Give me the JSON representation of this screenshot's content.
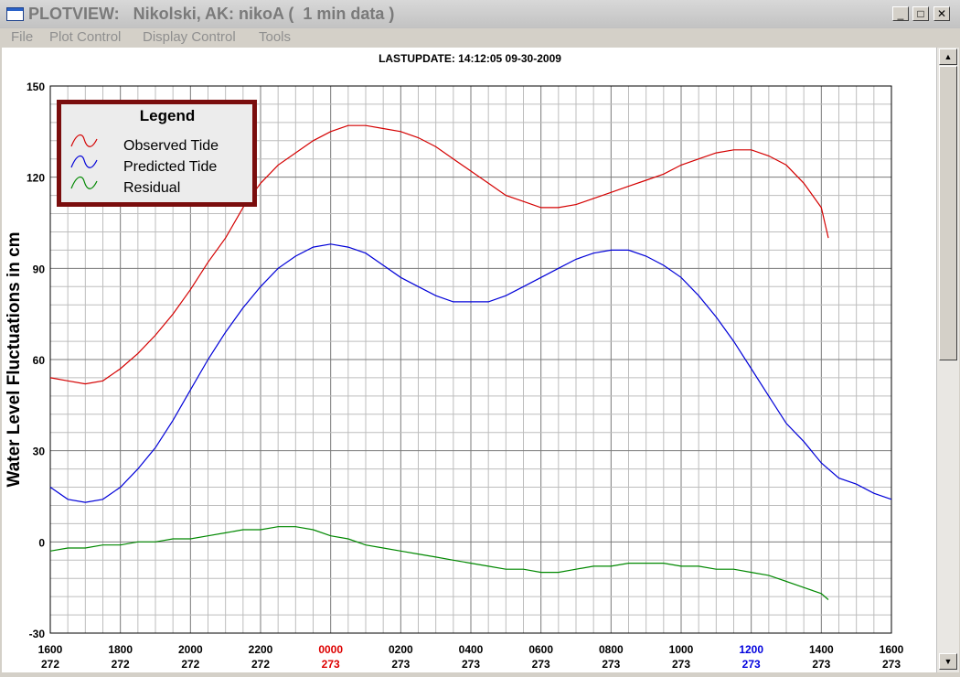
{
  "window": {
    "title": "PLOTVIEW:   Nikolski, AK: nikoA (  1 min data )",
    "controls": {
      "minimize": "_",
      "maximize": "□",
      "close": "✕"
    }
  },
  "menu": [
    "File",
    "Plot Control",
    "Display Control",
    "Tools"
  ],
  "plot": {
    "last_update": "LASTUPDATE: 14:12:05  09-30-2009",
    "legend": {
      "title": "Legend",
      "items": [
        {
          "label": "Observed Tide",
          "color": "#d40000"
        },
        {
          "label": "Predicted Tide",
          "color": "#0000d8"
        },
        {
          "label": "Residual",
          "color": "#008800"
        }
      ]
    }
  },
  "scrollbar": {
    "up_icon": "up-arrow-icon",
    "down_icon": "down-arrow-icon"
  },
  "chart_data": {
    "type": "line",
    "ylabel": "Water Level Fluctuations in cm",
    "ylim": [
      -30,
      150
    ],
    "yticks": [
      150,
      120,
      90,
      60,
      30,
      0,
      -30
    ],
    "xlim_hours": [
      0,
      24
    ],
    "xticks": [
      {
        "time": "1600",
        "day": "272",
        "color": "#000000"
      },
      {
        "time": "1800",
        "day": "272",
        "color": "#000000"
      },
      {
        "time": "2000",
        "day": "272",
        "color": "#000000"
      },
      {
        "time": "2200",
        "day": "272",
        "color": "#000000"
      },
      {
        "time": "0000",
        "day": "273",
        "color": "#dd0000"
      },
      {
        "time": "0200",
        "day": "273",
        "color": "#000000"
      },
      {
        "time": "0400",
        "day": "273",
        "color": "#000000"
      },
      {
        "time": "0600",
        "day": "273",
        "color": "#000000"
      },
      {
        "time": "0800",
        "day": "273",
        "color": "#000000"
      },
      {
        "time": "1000",
        "day": "273",
        "color": "#000000"
      },
      {
        "time": "1200",
        "day": "273",
        "color": "#0000dd"
      },
      {
        "time": "1400",
        "day": "273",
        "color": "#000000"
      },
      {
        "time": "1600",
        "day": "273",
        "color": "#000000"
      }
    ],
    "grid": true,
    "legend_position": "top-left",
    "series": [
      {
        "name": "Observed Tide",
        "color": "#d40000",
        "x": [
          0,
          0.5,
          1.0,
          1.5,
          2.0,
          2.5,
          3.0,
          3.5,
          4.0,
          4.5,
          5.0,
          5.5,
          6.0,
          6.5,
          7.0,
          7.5,
          8.0,
          8.5,
          9.0,
          9.5,
          10.0,
          10.5,
          11.0,
          11.5,
          12.0,
          12.5,
          13.0,
          13.5,
          14.0,
          14.5,
          15.0,
          15.5,
          16.0,
          16.5,
          17.0,
          17.5,
          18.0,
          18.5,
          19.0,
          19.5,
          20.0,
          20.5,
          21.0,
          21.5,
          22.0,
          22.2
        ],
        "y": [
          54,
          53,
          52,
          53,
          57,
          62,
          68,
          75,
          83,
          92,
          100,
          110,
          118,
          124,
          128,
          132,
          135,
          137,
          137,
          136,
          135,
          133,
          130,
          126,
          122,
          118,
          114,
          112,
          110,
          110,
          111,
          113,
          115,
          117,
          119,
          121,
          124,
          126,
          128,
          129,
          129,
          127,
          124,
          118,
          110,
          100
        ]
      },
      {
        "name": "Predicted Tide",
        "color": "#0000d8",
        "x": [
          0,
          0.5,
          1.0,
          1.5,
          2.0,
          2.5,
          3.0,
          3.5,
          4.0,
          4.5,
          5.0,
          5.5,
          6.0,
          6.5,
          7.0,
          7.5,
          8.0,
          8.5,
          9.0,
          9.5,
          10.0,
          10.5,
          11.0,
          11.5,
          12.0,
          12.5,
          13.0,
          13.5,
          14.0,
          14.5,
          15.0,
          15.5,
          16.0,
          16.5,
          17.0,
          17.5,
          18.0,
          18.5,
          19.0,
          19.5,
          20.0,
          20.5,
          21.0,
          21.5,
          22.0,
          22.5,
          23.0,
          23.5,
          24.0
        ],
        "y": [
          18,
          14,
          13,
          14,
          18,
          24,
          31,
          40,
          50,
          60,
          69,
          77,
          84,
          90,
          94,
          97,
          98,
          97,
          95,
          91,
          87,
          84,
          81,
          79,
          79,
          79,
          81,
          84,
          87,
          90,
          93,
          95,
          96,
          96,
          94,
          91,
          87,
          81,
          74,
          66,
          57,
          48,
          39,
          33,
          26,
          21,
          19,
          16,
          14
        ]
      },
      {
        "name": "Residual",
        "color": "#008800",
        "x": [
          0,
          0.5,
          1.0,
          1.5,
          2.0,
          2.5,
          3.0,
          3.5,
          4.0,
          4.5,
          5.0,
          5.5,
          6.0,
          6.5,
          7.0,
          7.5,
          8.0,
          8.5,
          9.0,
          9.5,
          10.0,
          10.5,
          11.0,
          11.5,
          12.0,
          12.5,
          13.0,
          13.5,
          14.0,
          14.5,
          15.0,
          15.5,
          16.0,
          16.5,
          17.0,
          17.5,
          18.0,
          18.5,
          19.0,
          19.5,
          20.0,
          20.5,
          21.0,
          21.5,
          22.0,
          22.2
        ],
        "y": [
          -3,
          -2,
          -2,
          -1,
          -1,
          0,
          0,
          1,
          1,
          2,
          3,
          4,
          4,
          5,
          5,
          4,
          2,
          1,
          -1,
          -2,
          -3,
          -4,
          -5,
          -6,
          -7,
          -8,
          -9,
          -9,
          -10,
          -10,
          -9,
          -8,
          -8,
          -7,
          -7,
          -7,
          -8,
          -8,
          -9,
          -9,
          -10,
          -11,
          -13,
          -15,
          -17,
          -19
        ]
      }
    ]
  }
}
